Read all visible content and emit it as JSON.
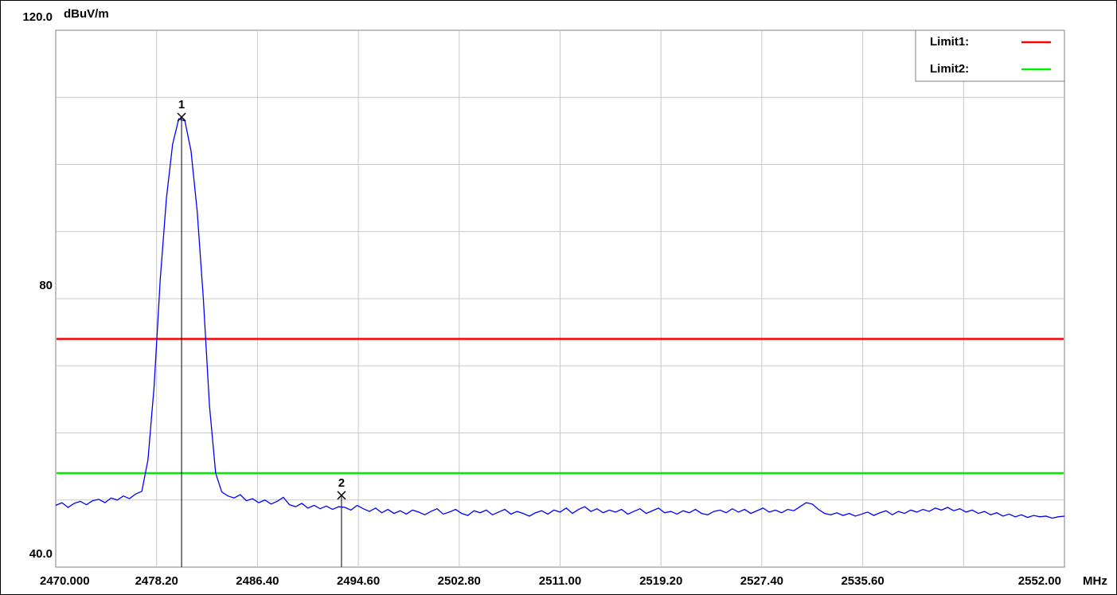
{
  "chart_data": {
    "type": "line",
    "y_unit": "dBuV/m",
    "x_unit": "MHz",
    "xlim": [
      2470,
      2552
    ],
    "ylim": [
      40,
      120
    ],
    "xticks": [
      {
        "value": 2470,
        "label": "2470.000"
      },
      {
        "value": 2478.2,
        "label": "2478.20"
      },
      {
        "value": 2486.4,
        "label": "2486.40"
      },
      {
        "value": 2494.6,
        "label": "2494.60"
      },
      {
        "value": 2502.8,
        "label": "2502.80"
      },
      {
        "value": 2511,
        "label": "2511.00"
      },
      {
        "value": 2519.2,
        "label": "2519.20"
      },
      {
        "value": 2527.4,
        "label": "2527.40"
      },
      {
        "value": 2535.6,
        "label": "2535.60"
      },
      {
        "value": 2552,
        "label": "2552.00"
      }
    ],
    "xgrid": [
      2478.2,
      2486.4,
      2494.6,
      2502.8,
      2511,
      2519.2,
      2527.4,
      2535.6,
      2543.8
    ],
    "yticks": [
      {
        "value": 40,
        "label": "40.0"
      },
      80,
      {
        "value": 120,
        "label": "120.0"
      }
    ],
    "ygrid": [
      50,
      60,
      70,
      80,
      90,
      100,
      110
    ],
    "limits": [
      {
        "name": "Limit1:",
        "color": "#ff0000",
        "value": 74
      },
      {
        "name": "Limit2:",
        "color": "#00ee00",
        "value": 54
      }
    ],
    "markers": [
      {
        "label": "1",
        "x": 2480.23,
        "y": 107.06
      },
      {
        "label": "2",
        "x": 2493.23,
        "y": 50.7
      }
    ],
    "x": [
      2470,
      2470.5,
      2471,
      2471.5,
      2472,
      2472.5,
      2473,
      2473.5,
      2474,
      2474.5,
      2475,
      2475.5,
      2476,
      2476.5,
      2477,
      2477.5,
      2478,
      2478.5,
      2479,
      2479.5,
      2480,
      2480.5,
      2481,
      2481.5,
      2482,
      2482.5,
      2483,
      2483.5,
      2484,
      2484.5,
      2485,
      2485.5,
      2486,
      2486.5,
      2487,
      2487.5,
      2488,
      2488.5,
      2489,
      2489.5,
      2490,
      2490.5,
      2491,
      2491.5,
      2492,
      2492.5,
      2493,
      2493.5,
      2494,
      2494.5,
      2495,
      2495.5,
      2496,
      2496.5,
      2497,
      2497.5,
      2498,
      2498.5,
      2499,
      2499.5,
      2500,
      2500.5,
      2501,
      2501.5,
      2502,
      2502.5,
      2503,
      2503.5,
      2504,
      2504.5,
      2505,
      2505.5,
      2506,
      2506.5,
      2507,
      2507.5,
      2508,
      2508.5,
      2509,
      2509.5,
      2510,
      2510.5,
      2511,
      2511.5,
      2512,
      2512.5,
      2513,
      2513.5,
      2514,
      2514.5,
      2515,
      2515.5,
      2516,
      2516.5,
      2517,
      2517.5,
      2518,
      2518.5,
      2519,
      2519.5,
      2520,
      2520.5,
      2521,
      2521.5,
      2522,
      2522.5,
      2523,
      2523.5,
      2524,
      2524.5,
      2525,
      2525.5,
      2526,
      2526.5,
      2527,
      2527.5,
      2528,
      2528.5,
      2529,
      2529.5,
      2530,
      2530.5,
      2531,
      2531.5,
      2532,
      2532.5,
      2533,
      2533.5,
      2534,
      2534.5,
      2535,
      2535.5,
      2536,
      2536.5,
      2537,
      2537.5,
      2538,
      2538.5,
      2539,
      2539.5,
      2540,
      2540.5,
      2541,
      2541.5,
      2542,
      2542.5,
      2543,
      2543.5,
      2544,
      2544.5,
      2545,
      2545.5,
      2546,
      2546.5,
      2547,
      2547.5,
      2548,
      2548.5,
      2549,
      2549.5,
      2550,
      2550.5,
      2551,
      2551.5,
      2552
    ],
    "series": [
      {
        "color": "#0000ff",
        "values": [
          49.2,
          49.6,
          48.9,
          49.5,
          49.8,
          49.3,
          49.9,
          50.1,
          49.6,
          50.3,
          50.0,
          50.6,
          50.2,
          50.9,
          51.3,
          56,
          67,
          83,
          95,
          103,
          106.8,
          106.5,
          102,
          93,
          80,
          64,
          54,
          51.2,
          50.6,
          50.3,
          50.8,
          49.9,
          50.2,
          49.6,
          50.0,
          49.4,
          49.8,
          50.4,
          49.3,
          49.0,
          49.5,
          48.8,
          49.2,
          48.7,
          49.1,
          48.6,
          49.0,
          48.9,
          48.5,
          49.2,
          48.7,
          48.3,
          48.8,
          48.1,
          48.6,
          48.0,
          48.4,
          47.9,
          48.5,
          48.2,
          47.8,
          48.3,
          48.7,
          47.9,
          48.2,
          48.6,
          48.0,
          47.7,
          48.4,
          48.1,
          48.5,
          47.8,
          48.2,
          48.6,
          47.9,
          48.3,
          48.0,
          47.6,
          48.1,
          48.4,
          47.9,
          48.5,
          48.2,
          48.8,
          48.0,
          48.6,
          49.0,
          48.3,
          48.7,
          48.1,
          48.5,
          48.2,
          48.6,
          47.9,
          48.3,
          48.7,
          48.0,
          48.4,
          48.8,
          48.1,
          48.3,
          47.9,
          48.4,
          48.1,
          48.6,
          48.0,
          47.8,
          48.3,
          48.5,
          48.1,
          48.7,
          48.2,
          48.6,
          48.0,
          48.4,
          48.8,
          48.2,
          48.5,
          48.1,
          48.6,
          48.4,
          49.0,
          49.6,
          49.4,
          48.6,
          48.0,
          47.8,
          48.1,
          47.7,
          48.0,
          47.6,
          47.9,
          48.2,
          47.7,
          48.1,
          48.4,
          47.8,
          48.3,
          48.0,
          48.5,
          48.2,
          48.6,
          48.3,
          48.8,
          48.5,
          48.9,
          48.4,
          48.7,
          48.2,
          48.5,
          48.0,
          48.3,
          47.8,
          48.1,
          47.6,
          47.9,
          47.5,
          47.8,
          47.4,
          47.7,
          47.5,
          47.6,
          47.3,
          47.5,
          47.6
        ]
      }
    ]
  }
}
